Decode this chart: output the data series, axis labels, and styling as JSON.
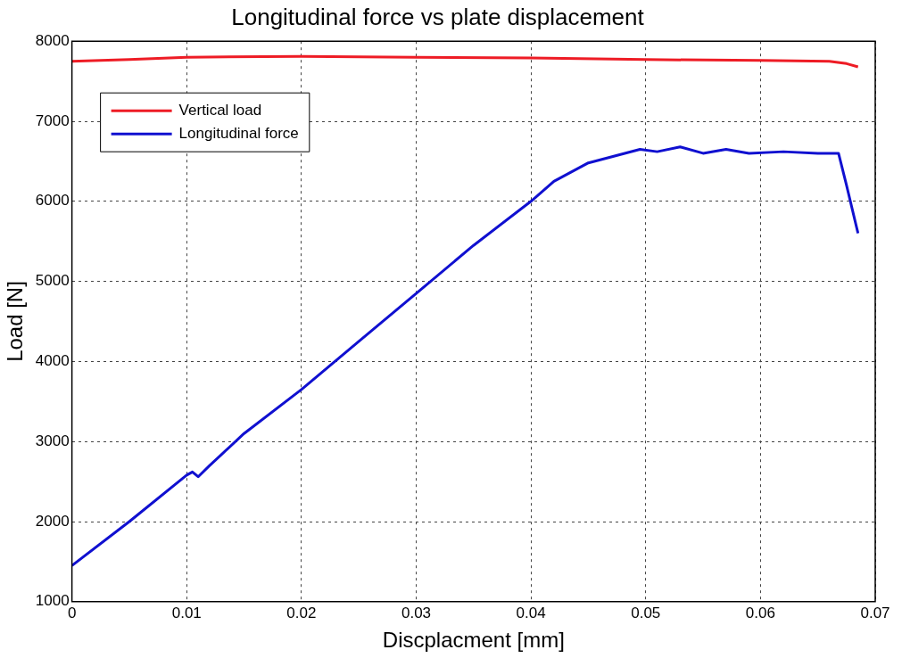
{
  "chart_data": {
    "type": "line",
    "title": "Longitudinal force vs plate displacement",
    "xlabel": "Discplacment [mm]",
    "ylabel": "Load [N]",
    "xlim": [
      0,
      0.07
    ],
    "xticks": [
      0,
      0.01,
      0.02,
      0.03,
      0.04,
      0.05,
      0.06,
      0.07
    ],
    "ylim": [
      1000,
      8000
    ],
    "yticks": [
      1000,
      2000,
      3000,
      4000,
      5000,
      6000,
      7000,
      8000
    ],
    "grid": true,
    "legend": "top left",
    "marker": "none",
    "line_style": "solid",
    "series": [
      {
        "name": "Vertical load",
        "color": "#ee1c25",
        "x": [
          0,
          0.005,
          0.01,
          0.02,
          0.03,
          0.04,
          0.05,
          0.06,
          0.066,
          0.0675,
          0.0685
        ],
        "values": [
          7750,
          7770,
          7800,
          7810,
          7800,
          7790,
          7770,
          7760,
          7750,
          7720,
          7680
        ]
      },
      {
        "name": "Longitudinal force",
        "color": "#1010d0",
        "x": [
          0,
          0.005,
          0.01,
          0.0105,
          0.011,
          0.012,
          0.015,
          0.02,
          0.025,
          0.03,
          0.035,
          0.04,
          0.042,
          0.045,
          0.0495,
          0.051,
          0.053,
          0.055,
          0.057,
          0.059,
          0.062,
          0.065,
          0.0668,
          0.0675,
          0.0685
        ],
        "values": [
          1450,
          2000,
          2580,
          2620,
          2560,
          2700,
          3100,
          3650,
          4250,
          4850,
          5450,
          6000,
          6250,
          6480,
          6650,
          6620,
          6680,
          6600,
          6650,
          6600,
          6620,
          6600,
          6600,
          6200,
          5600
        ]
      }
    ]
  }
}
